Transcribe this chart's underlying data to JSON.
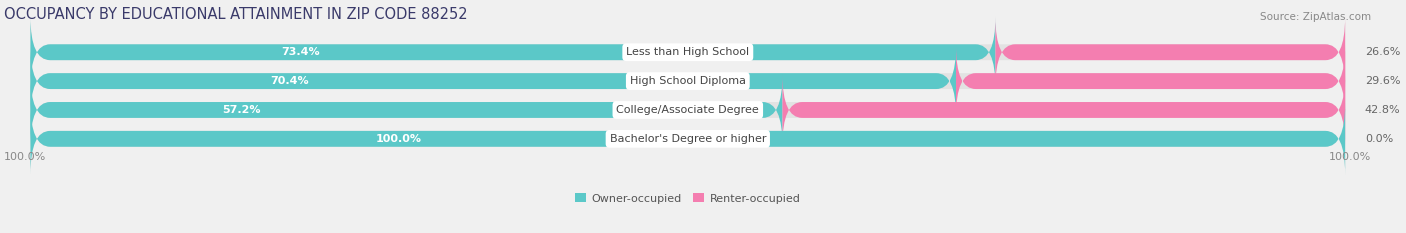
{
  "title": "OCCUPANCY BY EDUCATIONAL ATTAINMENT IN ZIP CODE 88252",
  "source": "Source: ZipAtlas.com",
  "categories": [
    "Less than High School",
    "High School Diploma",
    "College/Associate Degree",
    "Bachelor's Degree or higher"
  ],
  "owner_values": [
    73.4,
    70.4,
    57.2,
    100.0
  ],
  "renter_values": [
    26.6,
    29.6,
    42.8,
    0.0
  ],
  "owner_color": "#5BC8C8",
  "renter_color": "#F47EB0",
  "renter_color_low": "#F9AECF",
  "background_color": "#f0f0f0",
  "bar_bg_color": "#e2e2e2",
  "title_fontsize": 10.5,
  "source_fontsize": 7.5,
  "cat_fontsize": 8,
  "pct_fontsize": 8,
  "legend_owner": "Owner-occupied",
  "legend_renter": "Renter-occupied",
  "axis_label_left": "100.0%",
  "axis_label_right": "100.0%"
}
